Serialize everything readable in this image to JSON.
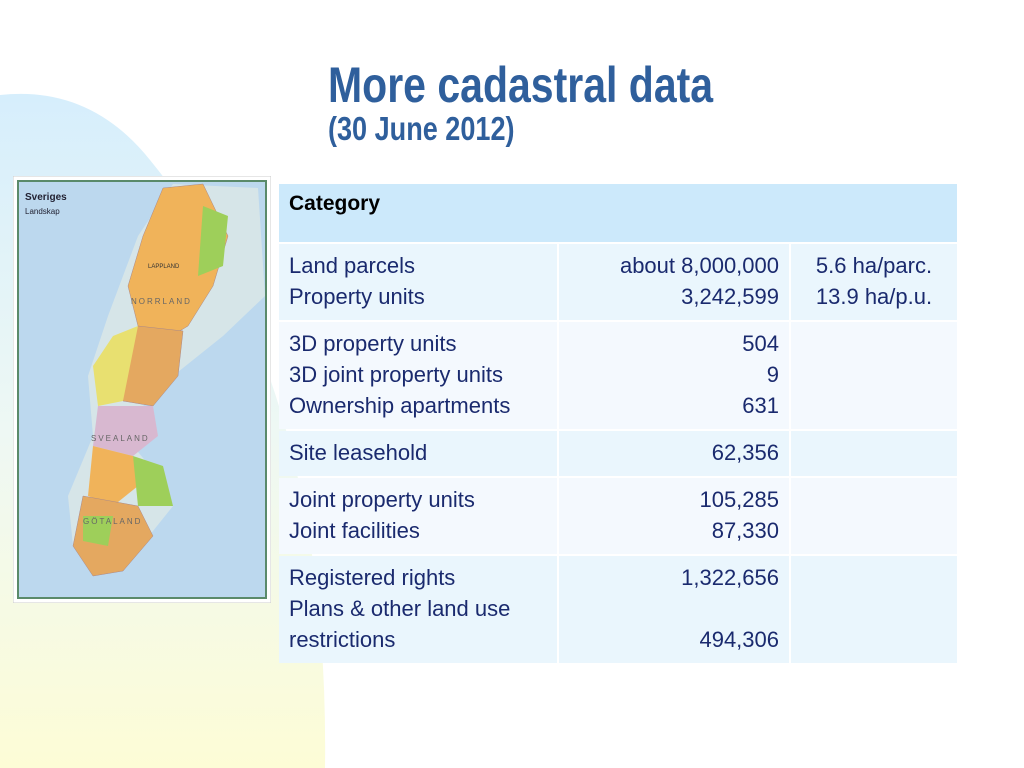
{
  "header": {
    "title": "More cadastral data",
    "subtitle": "(30 June 2012)"
  },
  "map": {
    "title": "Sveriges",
    "subtitle": "Landskap",
    "regions": [
      "LAPPLAND",
      "NORRLAND",
      "SVEALAND",
      "GÖTALAND"
    ]
  },
  "table": {
    "header": "Category",
    "rows": [
      {
        "items": [
          {
            "label": "Land parcels",
            "value": "about 8,000,000",
            "ratio": "5.6 ha/parc."
          },
          {
            "label": "Property units",
            "value": "3,242,599",
            "ratio": "13.9 ha/p.u."
          }
        ]
      },
      {
        "items": [
          {
            "label": "3D property units",
            "value": "504"
          },
          {
            "label": "3D joint property units",
            "value": "9"
          },
          {
            "label": "Ownership apartments",
            "value": "631"
          }
        ]
      },
      {
        "items": [
          {
            "label": "Site leasehold",
            "value": "62,356"
          }
        ]
      },
      {
        "items": [
          {
            "label": "Joint property units",
            "value": "105,285"
          },
          {
            "label": "Joint facilities",
            "value": "87,330"
          }
        ]
      },
      {
        "items": [
          {
            "label": "Registered rights",
            "value": "1,322,656"
          },
          {
            "label": "Plans & other land use restrictions",
            "value": "494,306"
          }
        ]
      }
    ]
  }
}
